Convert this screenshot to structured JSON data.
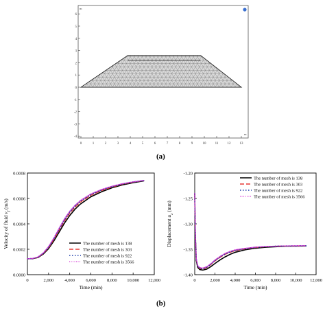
{
  "figure": {
    "panel_a_label": "(a)",
    "panel_b_label": "(b)"
  },
  "panel_a": {
    "corner_unit": "m",
    "x_ticks": [
      "0",
      "1",
      "2",
      "3",
      "4",
      "5",
      "6",
      "7",
      "8",
      "9",
      "10",
      "11",
      "12",
      "13"
    ],
    "y_ticks": [
      "6",
      "5",
      "4",
      "3",
      "2",
      "1",
      "0",
      "-1",
      "-2",
      "-3",
      "-4"
    ],
    "mesh_color": "#6f6f6f",
    "fill_color": "#d9d9d9"
  },
  "chart_data": [
    {
      "type": "line",
      "xlabel": "Time (min)",
      "ylabel": "Velocity of fluid v_f (m/s)",
      "ylabel_main": "Velocity of fluid ",
      "ylabel_var": "v",
      "ylabel_sub": "f",
      "ylabel_unit": " (m/s)",
      "xlim": [
        0,
        12000
      ],
      "ylim": [
        0,
        0.0008
      ],
      "x_ticks": [
        0,
        2000,
        4000,
        6000,
        8000,
        10000,
        12000
      ],
      "x_tick_labels": [
        "0",
        "2,000",
        "4,000",
        "6,000",
        "8,000",
        "10,000",
        "12,000"
      ],
      "y_ticks": [
        0,
        0.0002,
        0.0004,
        0.0006,
        0.0008
      ],
      "y_tick_labels": [
        "0.0000",
        "0.0002",
        "0.0004",
        "0.0006",
        "0.0008"
      ],
      "legend_position": "bottom-right",
      "series": [
        {
          "name": "The number of mesh is 138",
          "color": "#000000",
          "dash": "",
          "width": 1.6,
          "x": [
            0,
            500,
            1000,
            1500,
            2000,
            2500,
            3000,
            3500,
            4000,
            4500,
            5000,
            6000,
            7000,
            8000,
            9000,
            10000,
            11000
          ],
          "y": [
            0.000125,
            0.000126,
            0.000135,
            0.000162,
            0.000205,
            0.000265,
            0.000335,
            0.000405,
            0.000465,
            0.000515,
            0.000555,
            0.000613,
            0.000652,
            0.000684,
            0.000707,
            0.000724,
            0.000738
          ]
        },
        {
          "name": "The number of mesh is 303",
          "color": "#e53935",
          "dash": "6,3",
          "width": 1.4,
          "x": [
            0,
            500,
            1000,
            1500,
            2000,
            2500,
            3000,
            3500,
            4000,
            4500,
            5000,
            6000,
            7000,
            8000,
            9000,
            10000,
            11000
          ],
          "y": [
            0.000125,
            0.000127,
            0.000137,
            0.000166,
            0.000212,
            0.000276,
            0.00035,
            0.000422,
            0.000483,
            0.000531,
            0.00057,
            0.000625,
            0.000662,
            0.00069,
            0.000712,
            0.000728,
            0.00074
          ]
        },
        {
          "name": "The number of mesh is 922",
          "color": "#1a3aa8",
          "dash": "1.5,2.5",
          "width": 1.6,
          "x": [
            0,
            500,
            1000,
            1500,
            2000,
            2500,
            3000,
            3500,
            4000,
            4500,
            5000,
            6000,
            7000,
            8000,
            9000,
            10000,
            11000
          ],
          "y": [
            0.000125,
            0.000127,
            0.000138,
            0.000169,
            0.000218,
            0.000284,
            0.00036,
            0.000433,
            0.000494,
            0.000541,
            0.000579,
            0.000632,
            0.000668,
            0.000694,
            0.000715,
            0.00073,
            0.000741
          ]
        },
        {
          "name": "The number of mesh is 3566",
          "color": "#d63ad6",
          "dash": "1,1.5",
          "width": 1.3,
          "x": [
            0,
            500,
            1000,
            1500,
            2000,
            2500,
            3000,
            3500,
            4000,
            4500,
            5000,
            6000,
            7000,
            8000,
            9000,
            10000,
            11000
          ],
          "y": [
            0.000125,
            0.000128,
            0.00014,
            0.000172,
            0.000222,
            0.00029,
            0.000367,
            0.00044,
            0.0005,
            0.000547,
            0.000584,
            0.000636,
            0.000671,
            0.000697,
            0.000717,
            0.000731,
            0.000742
          ]
        }
      ]
    },
    {
      "type": "line",
      "xlabel": "Time (min)",
      "ylabel": "Displacement u_z (mm)",
      "ylabel_main": "Displacement ",
      "ylabel_var": "u",
      "ylabel_sub": "z",
      "ylabel_unit": " (mm)",
      "xlim": [
        0,
        12000
      ],
      "ylim": [
        -1.4,
        -1.2
      ],
      "x_ticks": [
        0,
        2000,
        4000,
        6000,
        8000,
        10000,
        12000
      ],
      "x_tick_labels": [
        "0",
        "2,000",
        "4,000",
        "6,000",
        "8,000",
        "10,000",
        "12,000"
      ],
      "y_ticks": [
        -1.4,
        -1.35,
        -1.3,
        -1.25,
        -1.2
      ],
      "y_tick_labels": [
        "-1.40",
        "-1.35",
        "-1.30",
        "-1.25",
        "-1.20"
      ],
      "legend_position": "top-right",
      "series": [
        {
          "name": "The number of mesh is 138",
          "color": "#000000",
          "dash": "",
          "width": 1.6,
          "x": [
            0,
            60,
            150,
            300,
            500,
            800,
            1200,
            1600,
            2000,
            2500,
            3000,
            3500,
            4000,
            5000,
            6000,
            7000,
            8000,
            9000,
            10000,
            11000
          ],
          "y": [
            -1.24,
            -1.32,
            -1.372,
            -1.386,
            -1.39,
            -1.391,
            -1.389,
            -1.384,
            -1.378,
            -1.371,
            -1.365,
            -1.36,
            -1.356,
            -1.351,
            -1.348,
            -1.346,
            -1.345,
            -1.344,
            -1.3438,
            -1.3435
          ]
        },
        {
          "name": "The number of mesh is 303",
          "color": "#e53935",
          "dash": "6,3",
          "width": 1.4,
          "x": [
            0,
            60,
            150,
            300,
            500,
            800,
            1200,
            1600,
            2000,
            2500,
            3000,
            3500,
            4000,
            5000,
            6000,
            7000,
            8000,
            9000,
            10000,
            11000
          ],
          "y": [
            -1.24,
            -1.318,
            -1.37,
            -1.384,
            -1.388,
            -1.389,
            -1.386,
            -1.38,
            -1.373,
            -1.366,
            -1.36,
            -1.356,
            -1.353,
            -1.349,
            -1.3465,
            -1.345,
            -1.344,
            -1.3436,
            -1.3434,
            -1.3432
          ]
        },
        {
          "name": "The number of mesh is 922",
          "color": "#1a3aa8",
          "dash": "1.5,2.5",
          "width": 1.6,
          "x": [
            0,
            60,
            150,
            300,
            500,
            800,
            1200,
            1600,
            2000,
            2500,
            3000,
            3500,
            4000,
            5000,
            6000,
            7000,
            8000,
            9000,
            10000,
            11000
          ],
          "y": [
            -1.24,
            -1.317,
            -1.369,
            -1.383,
            -1.387,
            -1.388,
            -1.385,
            -1.379,
            -1.372,
            -1.365,
            -1.359,
            -1.355,
            -1.352,
            -1.3485,
            -1.346,
            -1.3448,
            -1.344,
            -1.3435,
            -1.3433,
            -1.3431
          ]
        },
        {
          "name": "The number of mesh is 3566",
          "color": "#d63ad6",
          "dash": "1,1.5",
          "width": 1.3,
          "x": [
            0,
            60,
            150,
            300,
            500,
            800,
            1200,
            1600,
            2000,
            2500,
            3000,
            3500,
            4000,
            5000,
            6000,
            7000,
            8000,
            9000,
            10000,
            11000
          ],
          "y": [
            -1.24,
            -1.316,
            -1.368,
            -1.382,
            -1.386,
            -1.387,
            -1.384,
            -1.378,
            -1.371,
            -1.364,
            -1.358,
            -1.354,
            -1.351,
            -1.348,
            -1.3457,
            -1.3446,
            -1.3439,
            -1.3434,
            -1.3432,
            -1.343
          ]
        }
      ]
    }
  ]
}
